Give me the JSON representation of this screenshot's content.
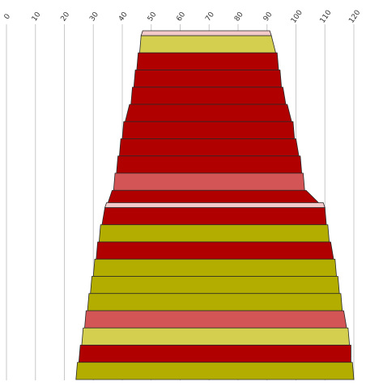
{
  "chart_data": {
    "type": "bar",
    "orientation": "horizontal",
    "style": "3d-stacked-bands",
    "title": "",
    "xlabel": "",
    "ylabel": "",
    "xlim": [
      0,
      120
    ],
    "x_ticks": [
      "0",
      "10",
      "20",
      "30",
      "40",
      "50",
      "60",
      "70",
      "80",
      "90",
      "100",
      "110",
      "120"
    ],
    "grid": true,
    "legend": "none",
    "colors": {
      "dark_red": "#b00000",
      "light_red": "#d35555",
      "olive": "#b3ad00",
      "light_olive": "#d4cf4e",
      "pink_top": "#f3c9c9",
      "gridline": "#c8c8c8"
    },
    "bands": [
      {
        "start": 46.5,
        "end": 91.5,
        "color": "light_olive"
      },
      {
        "start": 45.5,
        "end": 93.5,
        "color": "dark_red"
      },
      {
        "start": 44.5,
        "end": 94.5,
        "color": "dark_red"
      },
      {
        "start": 43.5,
        "end": 95.5,
        "color": "dark_red"
      },
      {
        "start": 42.5,
        "end": 97.0,
        "color": "dark_red"
      },
      {
        "start": 40.5,
        "end": 99.0,
        "color": "dark_red"
      },
      {
        "start": 39.5,
        "end": 100.0,
        "color": "dark_red"
      },
      {
        "start": 38.5,
        "end": 101.5,
        "color": "dark_red"
      },
      {
        "start": 37.5,
        "end": 102.5,
        "color": "light_red"
      },
      {
        "start": 36.5,
        "end": 103.5,
        "color": "dark_red"
      },
      {
        "start": 34.0,
        "end": 110.0,
        "color": "dark_red"
      },
      {
        "start": 32.5,
        "end": 111.0,
        "color": "olive"
      },
      {
        "start": 31.5,
        "end": 112.0,
        "color": "dark_red"
      },
      {
        "start": 30.5,
        "end": 113.5,
        "color": "olive"
      },
      {
        "start": 29.5,
        "end": 114.5,
        "color": "olive"
      },
      {
        "start": 28.5,
        "end": 115.5,
        "color": "olive"
      },
      {
        "start": 27.5,
        "end": 116.5,
        "color": "light_red"
      },
      {
        "start": 26.5,
        "end": 118.0,
        "color": "light_olive"
      },
      {
        "start": 25.5,
        "end": 119.0,
        "color": "dark_red"
      },
      {
        "start": 24.5,
        "end": 119.5,
        "color": "olive"
      }
    ]
  }
}
